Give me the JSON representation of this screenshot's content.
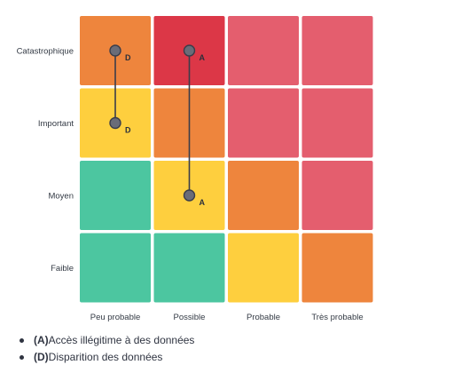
{
  "chart_data": {
    "type": "heatmap",
    "x_labels": [
      "Peu probable",
      "Possible",
      "Probable",
      "Très probable"
    ],
    "y_labels": [
      "Catastrophique",
      "Important",
      "Moyen",
      "Faible"
    ],
    "cells": [
      [
        "orange",
        "red",
        "pink",
        "pink"
      ],
      [
        "yellow",
        "orange",
        "pink",
        "pink"
      ],
      [
        "green",
        "yellow",
        "orange",
        "pink"
      ],
      [
        "green",
        "green",
        "yellow",
        "orange"
      ]
    ],
    "colors": {
      "green": "#4cc6a0",
      "yellow": "#fecf3e",
      "orange": "#ee853d",
      "pink": "#e45e6e",
      "red": "#dc3747",
      "line": "#3a3d4a",
      "marker": "#6a6c78"
    },
    "risks": [
      {
        "id": "A",
        "initial": {
          "likelihood": "Possible",
          "severity": "Moyen"
        },
        "residual": {
          "likelihood": "Possible",
          "severity": "Catastrophique"
        }
      },
      {
        "id": "D",
        "initial": {
          "likelihood": "Peu probable",
          "severity": "Important"
        },
        "residual": {
          "likelihood": "Peu probable",
          "severity": "Catastrophique"
        }
      }
    ]
  },
  "legend": [
    {
      "code": "(A)",
      "text": "Accès illégitime à des données"
    },
    {
      "code": "(D)",
      "text": "Disparition des données"
    }
  ]
}
